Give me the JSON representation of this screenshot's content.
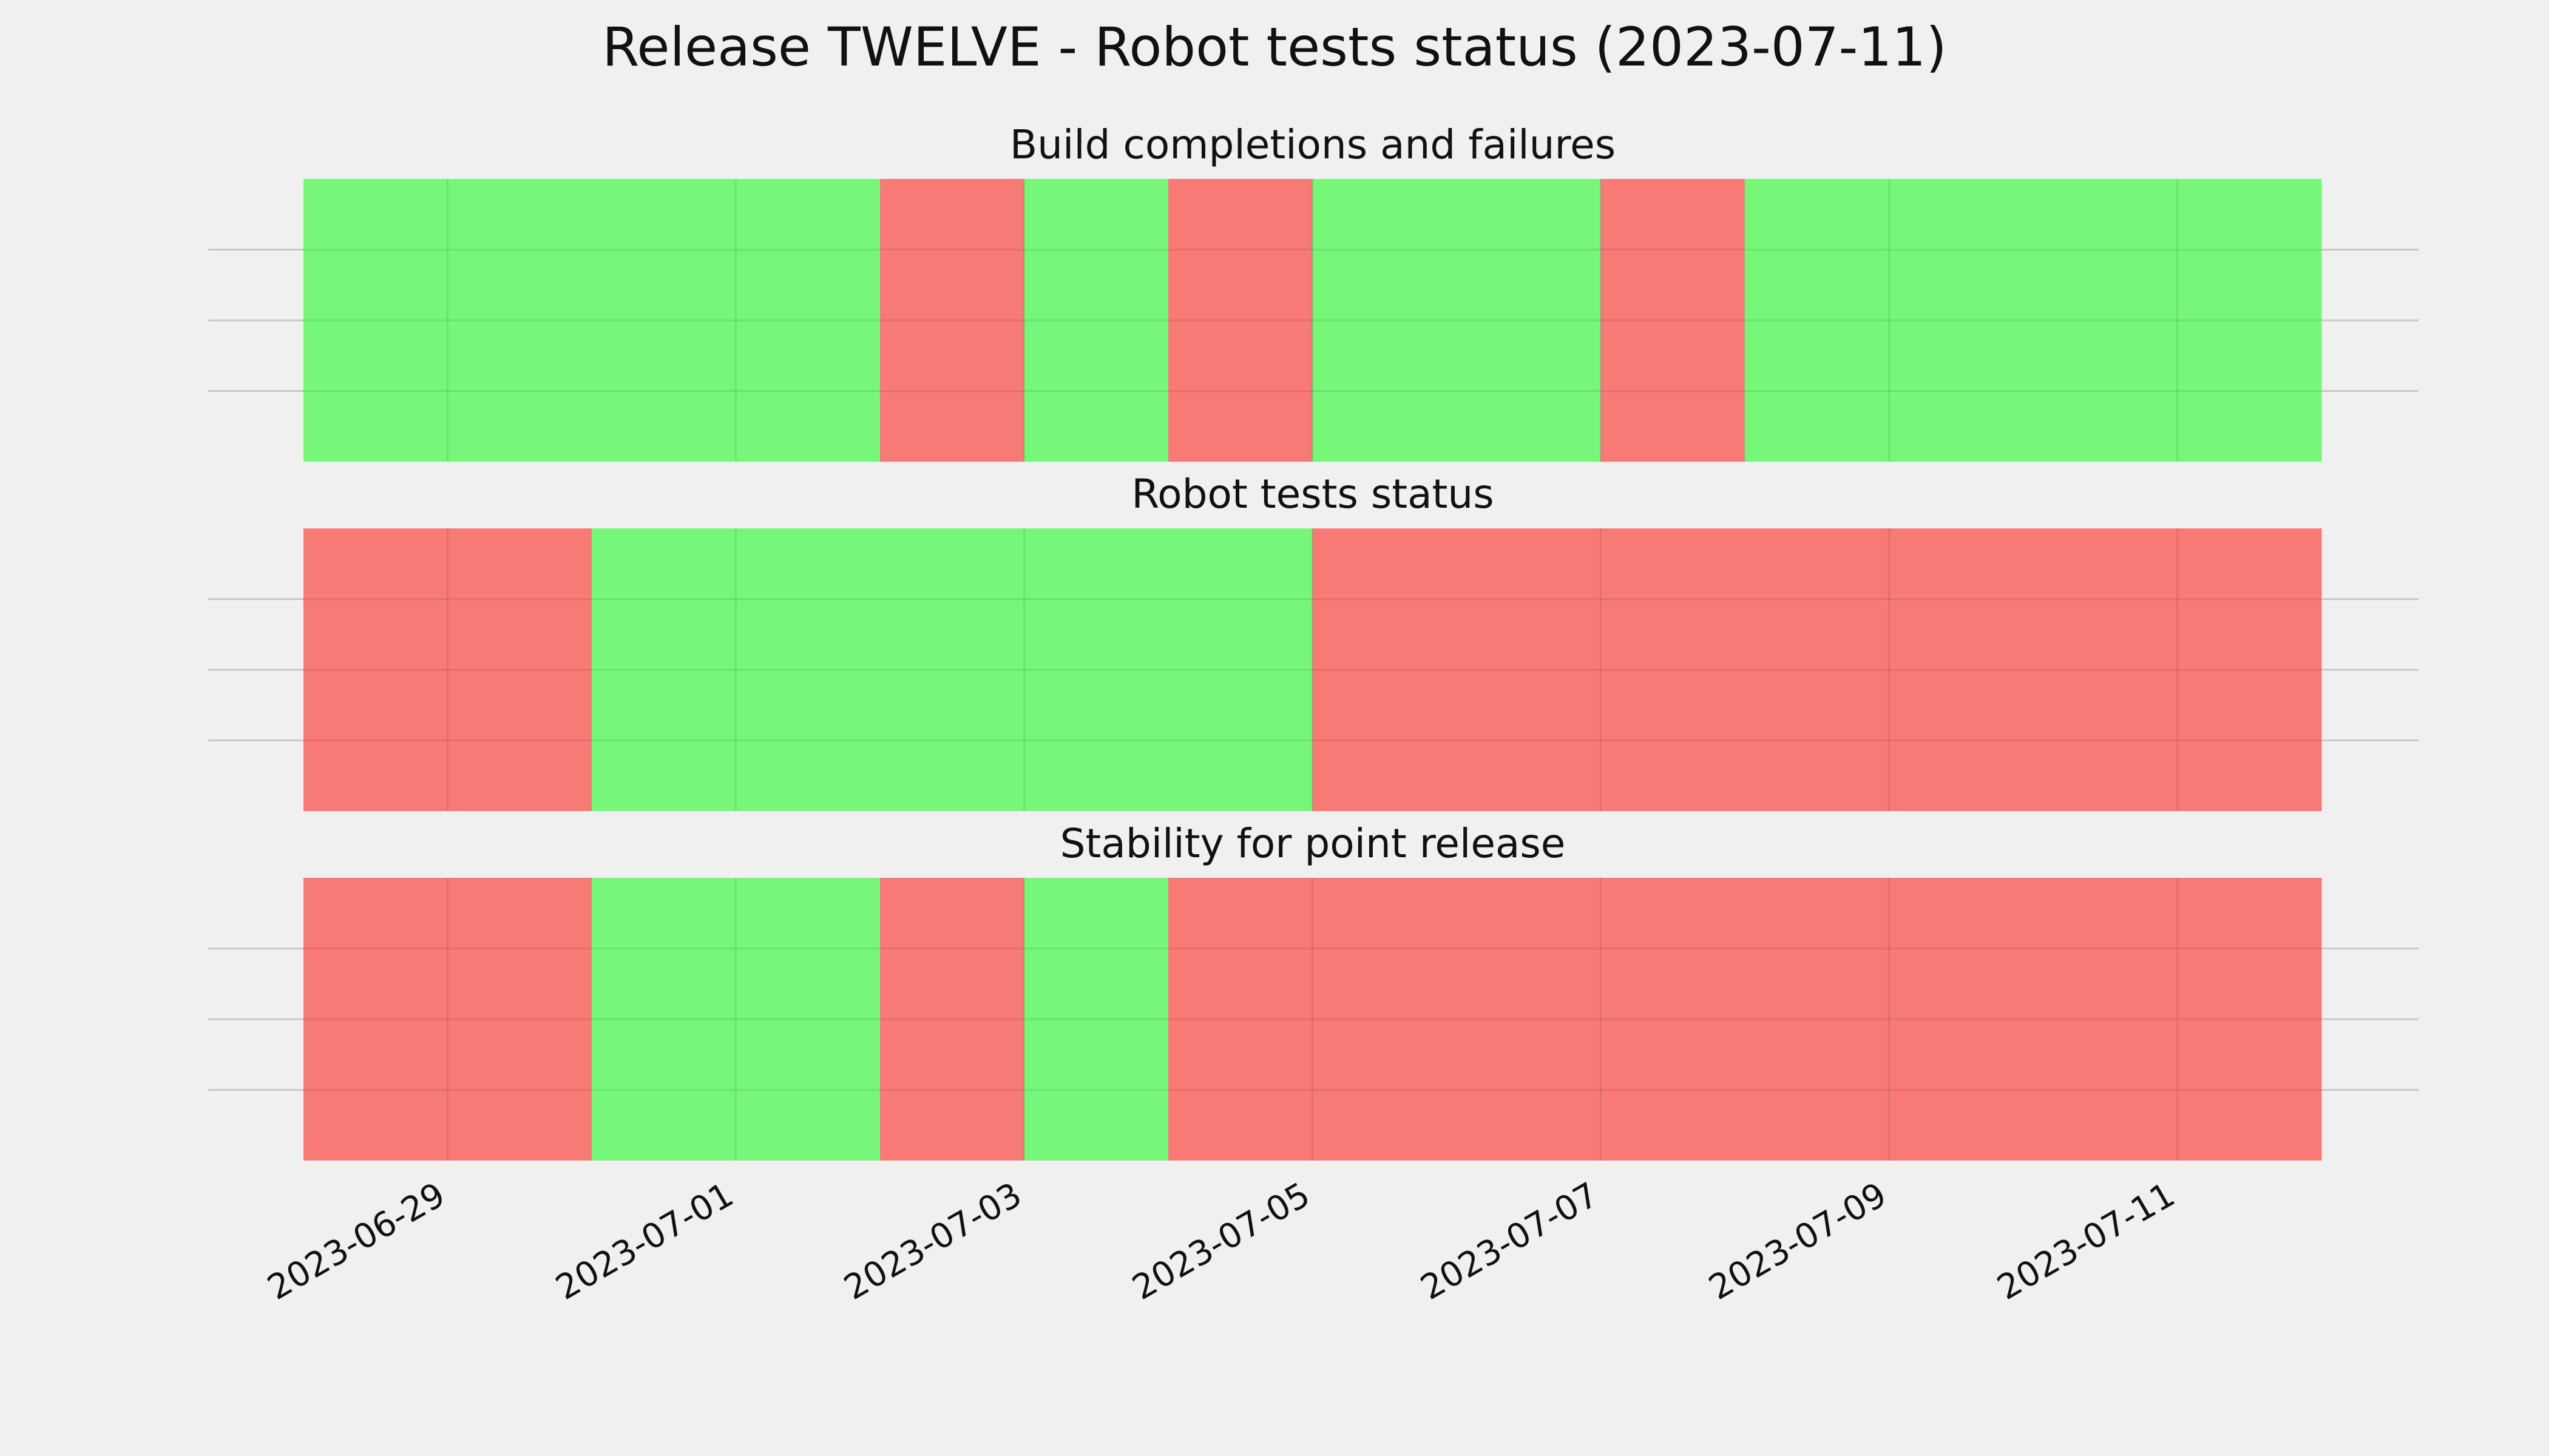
{
  "page": {
    "background": "#f0f0f0"
  },
  "chart_data": {
    "type": "timeline",
    "title": "Release TWELVE - Robot tests status (2023-07-11)",
    "x_axis": {
      "type": "date",
      "range": [
        "2023-06-28",
        "2023-07-11"
      ],
      "ticks": [
        "2023-06-29",
        "2023-07-01",
        "2023-07-03",
        "2023-07-05",
        "2023-07-07",
        "2023-07-09",
        "2023-07-11"
      ],
      "grid": true
    },
    "y_axis": {
      "tick_labels": [],
      "grid": true
    },
    "colors": {
      "pass": "#76f77a",
      "fail": "#f77a76"
    },
    "panels": [
      {
        "title": "Build completions and failures",
        "days": [
          {
            "date": "2023-06-28",
            "status": "pass"
          },
          {
            "date": "2023-06-29",
            "status": "pass"
          },
          {
            "date": "2023-06-30",
            "status": "pass"
          },
          {
            "date": "2023-07-01",
            "status": "pass"
          },
          {
            "date": "2023-07-02",
            "status": "fail"
          },
          {
            "date": "2023-07-03",
            "status": "pass"
          },
          {
            "date": "2023-07-04",
            "status": "fail"
          },
          {
            "date": "2023-07-05",
            "status": "pass"
          },
          {
            "date": "2023-07-06",
            "status": "pass"
          },
          {
            "date": "2023-07-07",
            "status": "fail"
          },
          {
            "date": "2023-07-08",
            "status": "pass"
          },
          {
            "date": "2023-07-09",
            "status": "pass"
          },
          {
            "date": "2023-07-10",
            "status": "pass"
          },
          {
            "date": "2023-07-11",
            "status": "pass"
          }
        ]
      },
      {
        "title": "Robot tests status",
        "days": [
          {
            "date": "2023-06-28",
            "status": "fail"
          },
          {
            "date": "2023-06-29",
            "status": "fail"
          },
          {
            "date": "2023-06-30",
            "status": "pass"
          },
          {
            "date": "2023-07-01",
            "status": "pass"
          },
          {
            "date": "2023-07-02",
            "status": "pass"
          },
          {
            "date": "2023-07-03",
            "status": "pass"
          },
          {
            "date": "2023-07-04",
            "status": "pass"
          },
          {
            "date": "2023-07-05",
            "status": "fail"
          },
          {
            "date": "2023-07-06",
            "status": "fail"
          },
          {
            "date": "2023-07-07",
            "status": "fail"
          },
          {
            "date": "2023-07-08",
            "status": "fail"
          },
          {
            "date": "2023-07-09",
            "status": "fail"
          },
          {
            "date": "2023-07-10",
            "status": "fail"
          },
          {
            "date": "2023-07-11",
            "status": "fail"
          }
        ]
      },
      {
        "title": "Stability for point release",
        "days": [
          {
            "date": "2023-06-28",
            "status": "fail"
          },
          {
            "date": "2023-06-29",
            "status": "fail"
          },
          {
            "date": "2023-06-30",
            "status": "pass"
          },
          {
            "date": "2023-07-01",
            "status": "pass"
          },
          {
            "date": "2023-07-02",
            "status": "fail"
          },
          {
            "date": "2023-07-03",
            "status": "pass"
          },
          {
            "date": "2023-07-04",
            "status": "fail"
          },
          {
            "date": "2023-07-05",
            "status": "fail"
          },
          {
            "date": "2023-07-06",
            "status": "fail"
          },
          {
            "date": "2023-07-07",
            "status": "fail"
          },
          {
            "date": "2023-07-08",
            "status": "fail"
          },
          {
            "date": "2023-07-09",
            "status": "fail"
          },
          {
            "date": "2023-07-10",
            "status": "fail"
          },
          {
            "date": "2023-07-11",
            "status": "fail"
          }
        ]
      }
    ]
  }
}
